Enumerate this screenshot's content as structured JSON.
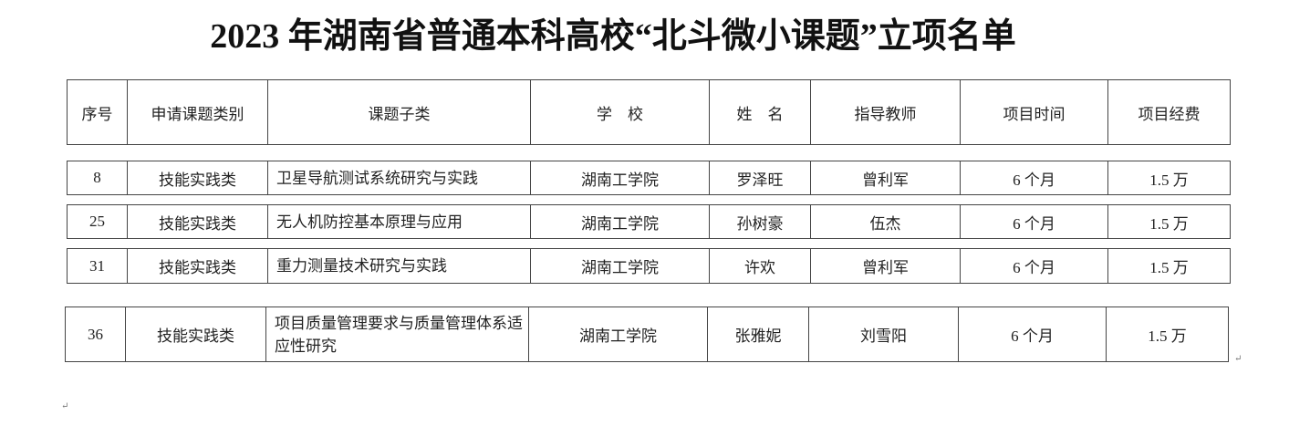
{
  "title": "2023 年湖南省普通本科高校“北斗微小课题”立项名单",
  "table": {
    "headers": [
      "序号",
      "申请课题类别",
      "课题子类",
      "学　校",
      "姓　名",
      "指导教师",
      "项目时间",
      "项目经费"
    ],
    "rows": [
      [
        "8",
        "技能实践类",
        "卫星导航测试系统研究与实践",
        "湖南工学院",
        "罗泽旺",
        "曾利军",
        "6 个月",
        "1.5 万"
      ],
      [
        "25",
        "技能实践类",
        "无人机防控基本原理与应用",
        "湖南工学院",
        "孙树豪",
        "伍杰",
        "6 个月",
        "1.5 万"
      ],
      [
        "31",
        "技能实践类",
        "重力测量技术研究与实践",
        "湖南工学院",
        "许欢",
        "曾利军",
        "6 个月",
        "1.5 万"
      ],
      [
        "36",
        "技能实践类",
        "项目质量管理要求与质量管理体系适应性研究",
        "湖南工学院",
        "张雅妮",
        "刘雪阳",
        "6 个月",
        "1.5 万"
      ]
    ]
  },
  "paragraph_mark": "↵"
}
